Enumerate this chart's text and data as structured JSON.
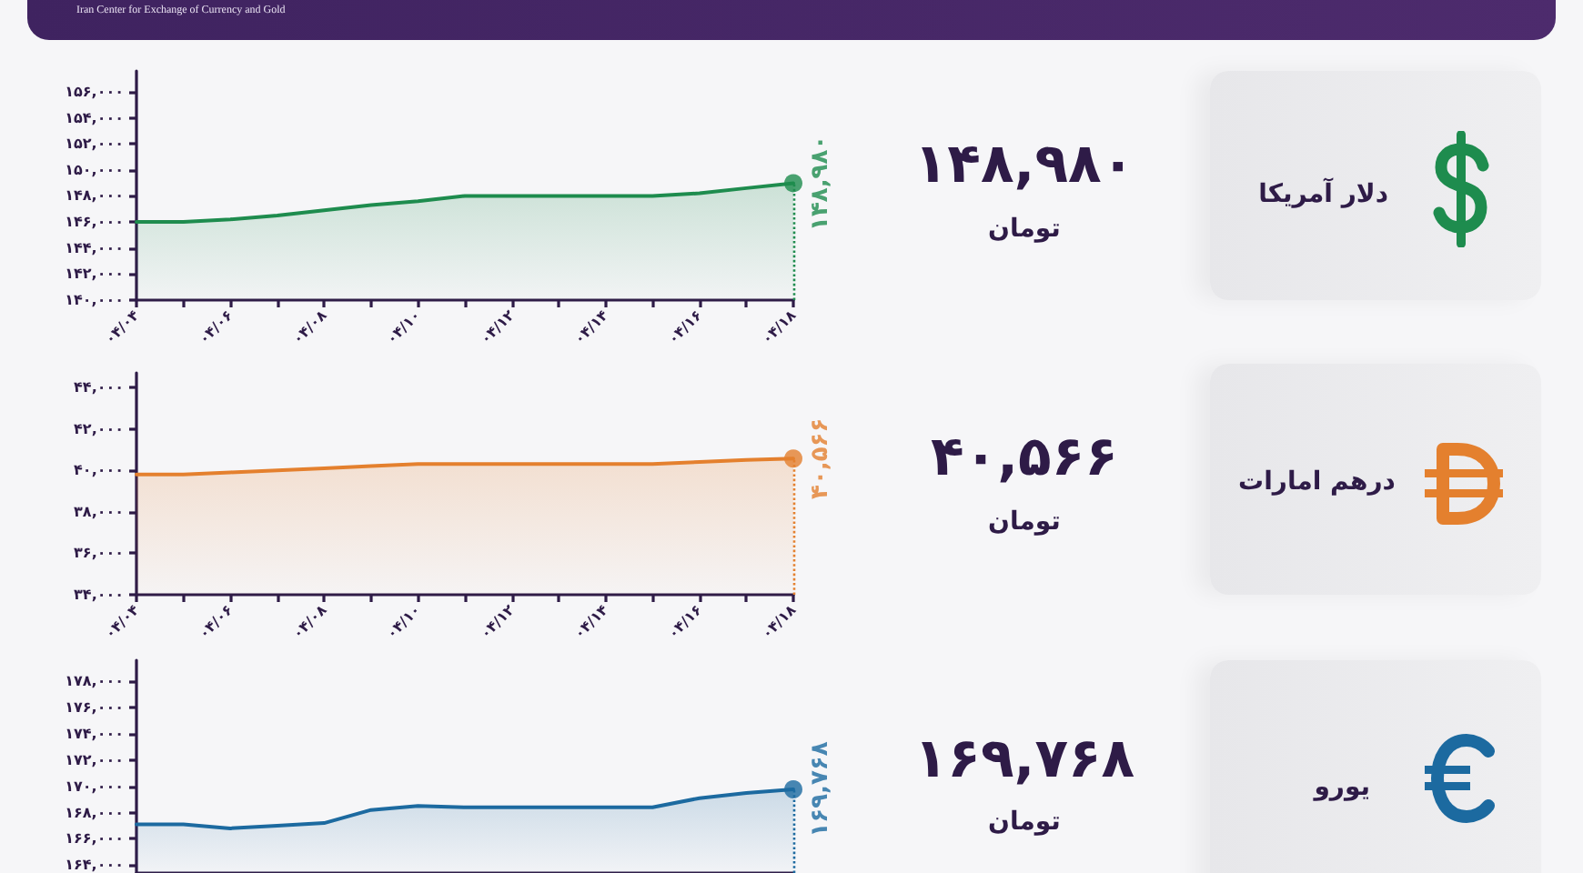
{
  "chart_data": [
    {
      "type": "other",
      "annotations": [
        "Iran Center for Exchange of Currency and Gold"
      ]
    },
    {
      "type": "other",
      "title": "دلار آمریکا",
      "annotations": [
        "۱۴۸,۹۸۰",
        "تومان"
      ]
    },
    {
      "type": "area",
      "categories": [
        "۰۴/۰۴",
        null,
        "۰۴/۰۶",
        null,
        "۰۴/۰۸",
        null,
        "۰۴/۱۰",
        null,
        "۰۴/۱۲",
        null,
        "۰۴/۱۴",
        null,
        "۰۴/۱۶",
        null,
        "۰۴/۱۸"
      ],
      "ylim": [
        140000,
        157600
      ],
      "yticks": [
        {
          "value": 140000,
          "label": "۱۴۰,۰۰۰"
        },
        {
          "value": 142000,
          "label": "۱۴۲,۰۰۰"
        },
        {
          "value": 144000,
          "label": "۱۴۴,۰۰۰"
        },
        {
          "value": 146000,
          "label": "۱۴۶,۰۰۰"
        },
        {
          "value": 148000,
          "label": "۱۴۸,۰۰۰"
        },
        {
          "value": 150000,
          "label": "۱۵۰,۰۰۰"
        },
        {
          "value": 152000,
          "label": "۱۵۲,۰۰۰"
        },
        {
          "value": 154000,
          "label": "۱۵۴,۰۰۰"
        },
        {
          "value": 156000,
          "label": "۱۵۶,۰۰۰"
        }
      ],
      "marker": "none",
      "series": [
        {
          "color": "#1e8c4e",
          "values": [
            146000,
            146000,
            146200,
            146500,
            146900,
            147300,
            147600,
            148000,
            148000,
            148000,
            148000,
            148000,
            148200,
            148600,
            148980
          ]
        },
        {
          "type": "lollipop",
          "marker": "circle",
          "line_style": "dotted",
          "color": "#1e8c4e",
          "x": [
            "۰۴/۱۸"
          ],
          "values": [
            148980
          ],
          "value_labels": [
            "۱۴۸,۹۸۰"
          ]
        }
      ]
    },
    {
      "type": "other",
      "title": "درهم امارات",
      "annotations": [
        "۴۰,۵۶۶",
        "تومان"
      ]
    },
    {
      "type": "area",
      "categories": [
        "۰۴/۰۴",
        null,
        "۰۴/۰۶",
        null,
        "۰۴/۰۸",
        null,
        "۰۴/۱۰",
        null,
        "۰۴/۱۲",
        null,
        "۰۴/۱۴",
        null,
        "۰۴/۱۶",
        null,
        "۰۴/۱۸"
      ],
      "ylim": [
        34000,
        44700
      ],
      "yticks": [
        {
          "value": 34000,
          "label": "۳۴,۰۰۰"
        },
        {
          "value": 36000,
          "label": "۳۶,۰۰۰"
        },
        {
          "value": 38000,
          "label": "۳۸,۰۰۰"
        },
        {
          "value": 40000,
          "label": "۴۰,۰۰۰"
        },
        {
          "value": 42000,
          "label": "۴۲,۰۰۰"
        },
        {
          "value": 44000,
          "label": "۴۴,۰۰۰"
        }
      ],
      "marker": "none",
      "series": [
        {
          "color": "#e4802e",
          "values": [
            39800,
            39800,
            39900,
            40000,
            40100,
            40200,
            40300,
            40300,
            40300,
            40300,
            40300,
            40300,
            40400,
            40500,
            40566
          ]
        },
        {
          "type": "lollipop",
          "marker": "circle",
          "line_style": "dotted",
          "color": "#e4802e",
          "x": [
            "۰۴/۱۸"
          ],
          "values": [
            40566
          ],
          "value_labels": [
            "۴۰,۵۶۶"
          ]
        }
      ]
    },
    {
      "type": "other",
      "title": "یورو",
      "annotations": [
        "۱۶۹,۷۶۸",
        "تومان"
      ]
    },
    {
      "type": "area",
      "categories": [
        "۰۴/۰۴",
        null,
        "۰۴/۰۶",
        null,
        "۰۴/۰۸",
        null,
        "۰۴/۱۰",
        null,
        "۰۴/۱۲",
        null,
        "۰۴/۱۴",
        null,
        "۰۴/۱۶",
        null,
        "۰۴/۱۸"
      ],
      "ylim": [
        163400,
        179600
      ],
      "yticks": [
        {
          "value": 164000,
          "label": "۱۶۴,۰۰۰"
        },
        {
          "value": 166000,
          "label": "۱۶۶,۰۰۰"
        },
        {
          "value": 168000,
          "label": "۱۶۸,۰۰۰"
        },
        {
          "value": 170000,
          "label": "۱۷۰,۰۰۰"
        },
        {
          "value": 172000,
          "label": "۱۷۲,۰۰۰"
        },
        {
          "value": 174000,
          "label": "۱۷۴,۰۰۰"
        },
        {
          "value": 176000,
          "label": "۱۷۶,۰۰۰"
        },
        {
          "value": 178000,
          "label": "۱۷۸,۰۰۰"
        }
      ],
      "tick_labels": "y",
      "marker": "none",
      "series": [
        {
          "color": "#1c6aa0",
          "values": [
            167100,
            167100,
            166800,
            167000,
            167200,
            168200,
            168500,
            168400,
            168400,
            168400,
            168400,
            168400,
            169100,
            169500,
            169768
          ]
        },
        {
          "type": "lollipop",
          "marker": "circle",
          "line_style": "dotted",
          "color": "#1c6aa0",
          "x": [
            "۰۴/۱۸"
          ],
          "values": [
            169768
          ],
          "value_labels": [
            "۱۶۹,۷۶۸"
          ]
        }
      ]
    }
  ]
}
